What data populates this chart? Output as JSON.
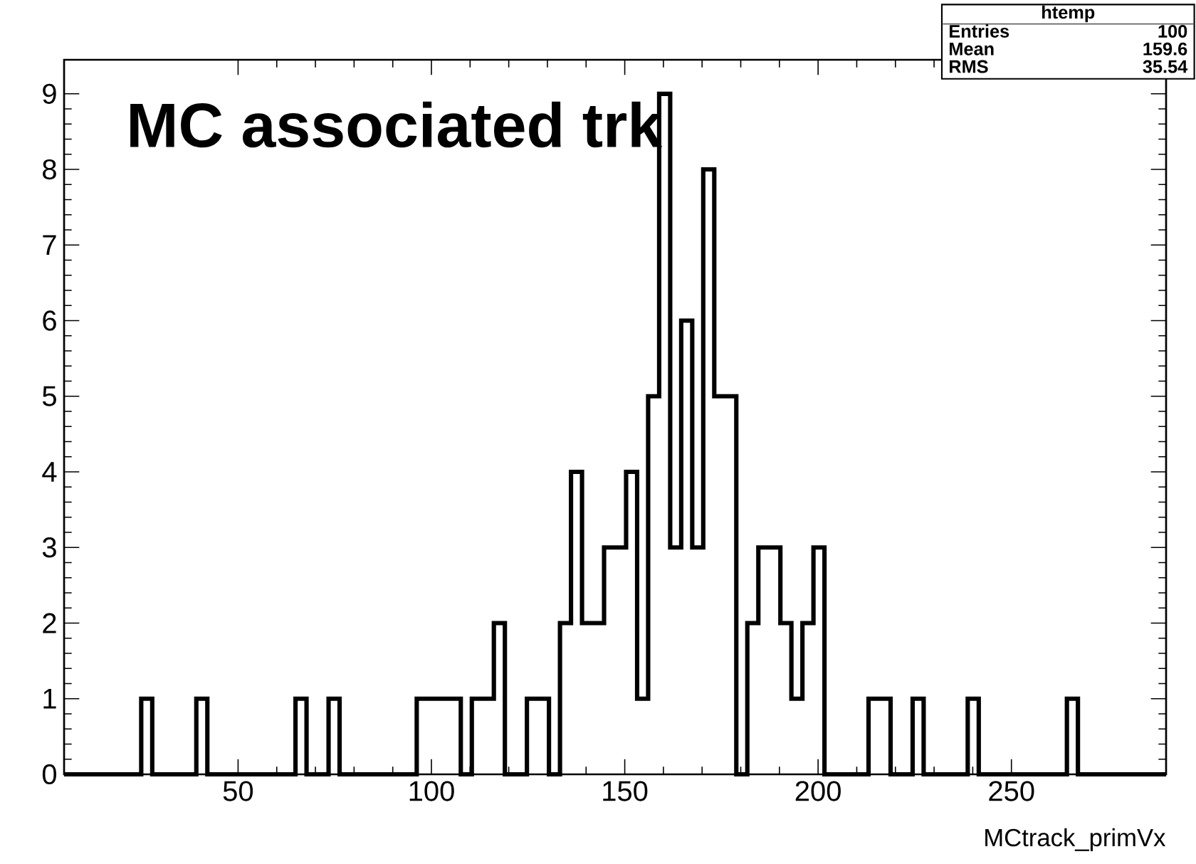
{
  "chart_data": {
    "type": "histogram",
    "title": "MC associated trk",
    "xlabel": "MCtrack_primVx",
    "annotations": [
      "htemp",
      "Entries",
      "100",
      "Mean",
      "159.6",
      "RMS",
      "35.54"
    ],
    "color": "#000000",
    "bins": [
      5,
      7.85,
      10.7,
      13.55,
      16.4,
      19.25,
      22.1,
      24.95,
      27.8,
      30.65,
      33.5,
      36.35,
      39.2,
      42.05,
      44.9,
      47.75,
      50.6,
      53.45,
      56.3,
      59.15,
      62,
      64.85,
      67.7,
      70.55,
      73.4,
      76.25,
      79.1,
      81.95,
      84.8,
      87.65,
      90.5,
      93.35,
      96.2,
      99.05,
      101.9,
      104.75,
      107.6,
      110.45,
      113.3,
      116.15,
      119,
      121.85,
      124.7,
      127.55,
      130.4,
      133.25,
      136.1,
      138.95,
      141.8,
      144.65,
      147.5,
      150.35,
      153.2,
      156.05,
      158.9,
      161.75,
      164.6,
      167.45,
      170.3,
      173.15,
      176,
      178.85,
      181.7,
      184.55,
      187.4,
      190.25,
      193.1,
      195.95,
      198.8,
      201.65,
      204.5,
      207.35,
      210.2,
      213.05,
      215.9,
      218.75,
      221.6,
      224.45,
      227.3,
      230.15,
      233,
      235.85,
      238.7,
      241.55,
      244.4,
      247.25,
      250.1,
      252.95,
      255.8,
      258.65,
      261.5,
      264.35,
      267.2,
      270.05,
      272.9,
      275.75,
      278.6,
      281.45,
      284.3,
      287.15,
      290
    ],
    "values": [
      0,
      0,
      0,
      0,
      0,
      0,
      0,
      1,
      0,
      0,
      0,
      0,
      1,
      0,
      0,
      0,
      0,
      0,
      0,
      0,
      0,
      1,
      0,
      0,
      1,
      0,
      0,
      0,
      0,
      0,
      0,
      0,
      1,
      1,
      1,
      1,
      0,
      1,
      1,
      2,
      0,
      0,
      1,
      1,
      0,
      2,
      4,
      2,
      2,
      3,
      3,
      4,
      1,
      5,
      9,
      3,
      6,
      3,
      8,
      5,
      5,
      0,
      2,
      3,
      3,
      2,
      1,
      2,
      3,
      0,
      0,
      0,
      0,
      1,
      1,
      0,
      0,
      1,
      0,
      0,
      0,
      0,
      1,
      0,
      0,
      0,
      0,
      0,
      0,
      0,
      0,
      1,
      0,
      0,
      0,
      0,
      0,
      0,
      0,
      0
    ],
    "xlim": [
      5,
      290
    ],
    "ylim": [
      0,
      9.45
    ],
    "xticks": [
      50,
      100,
      150,
      200,
      250
    ],
    "yticks": [
      0,
      1,
      2,
      3,
      4,
      5,
      6,
      7,
      8,
      9
    ]
  }
}
